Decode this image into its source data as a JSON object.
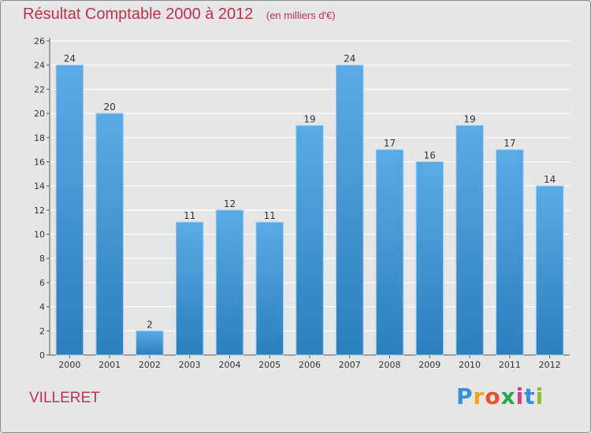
{
  "title": "Résultat Comptable 2000 à 2012",
  "subtitle": "(en milliers d'€)",
  "commune": "VILLERET",
  "brand": {
    "text": "Proxiti",
    "letters": [
      "P",
      "r",
      "o",
      "x",
      "i",
      "t",
      "i"
    ],
    "colors": [
      "#3b8fd6",
      "#f0a31b",
      "#e8502a",
      "#2aa84a",
      "#d83b8a",
      "#3b8fd6",
      "#8bbf2a"
    ]
  },
  "colors": {
    "accent": "#c0314f",
    "bar_top": "#5aaae6",
    "bar_bottom": "#2c7fbd",
    "background": "#e6e6e6",
    "grid": "#ffffff"
  },
  "chart_data": {
    "type": "bar",
    "title": "Résultat Comptable 2000 à 2012",
    "subtitle": "(en milliers d'€)",
    "xlabel": "",
    "ylabel": "",
    "categories": [
      "2000",
      "2001",
      "2002",
      "2003",
      "2004",
      "2005",
      "2006",
      "2007",
      "2008",
      "2009",
      "2010",
      "2011",
      "2012"
    ],
    "values": [
      24,
      20,
      2,
      11,
      12,
      11,
      19,
      24,
      17,
      16,
      19,
      17,
      14
    ],
    "data_labels": [
      "24",
      "20",
      "2",
      "11",
      "12",
      "11",
      "19",
      "24",
      "17",
      "16",
      "19",
      "17",
      "14"
    ],
    "ylim": [
      0,
      26
    ],
    "yticks": [
      0,
      2,
      4,
      6,
      8,
      10,
      12,
      14,
      16,
      18,
      20,
      22,
      24,
      26
    ],
    "grid": true
  }
}
